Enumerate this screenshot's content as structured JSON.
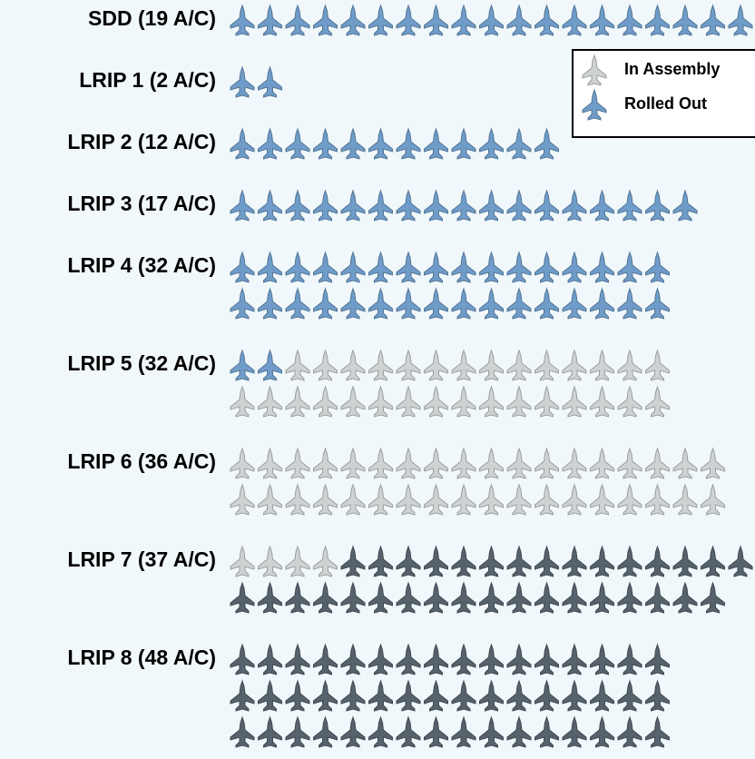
{
  "chart_data": {
    "type": "pictograph",
    "categories": [
      "SDD  (19 A/C)",
      "LRIP 1 (2 A/C)",
      "LRIP 2 (12 A/C)",
      "LRIP 3 (17 A/C)",
      "LRIP 4 (32 A/C)",
      "LRIP 5 (32 A/C)",
      "LRIP 6 (36 A/C)",
      "LRIP 7 (37 A/C)",
      "LRIP 8 (48 A/C)"
    ],
    "series": [
      {
        "name": "Rolled Out",
        "color": "#6f9cc8",
        "values": [
          19,
          2,
          12,
          17,
          32,
          2,
          0,
          0,
          0
        ]
      },
      {
        "name": "In Assembly",
        "color": "#cfd2d2",
        "values": [
          0,
          0,
          0,
          0,
          0,
          30,
          36,
          4,
          0
        ]
      },
      {
        "color": "#56626c",
        "values": [
          0,
          0,
          0,
          0,
          0,
          0,
          0,
          33,
          48
        ]
      }
    ],
    "legend": "top-right"
  }
}
